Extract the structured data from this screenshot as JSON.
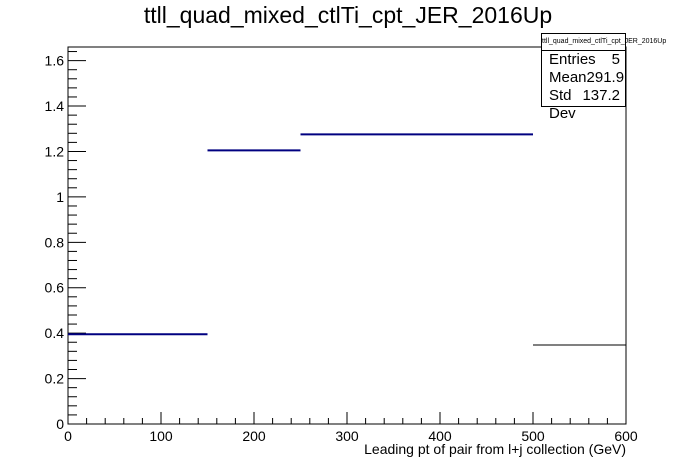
{
  "chart_data": {
    "type": "bar",
    "title": "ttll_quad_mixed_ctlTi_cpt_JER_2016Up",
    "xlabel": "Leading pt of pair from l+j collection (GeV)",
    "ylabel": "",
    "xlim": [
      0,
      600
    ],
    "ylim": [
      0,
      1.66
    ],
    "x_ticks": [
      0,
      100,
      200,
      300,
      400,
      500,
      600
    ],
    "y_ticks": [
      0,
      0.2,
      0.4,
      0.6,
      0.8,
      1,
      1.2,
      1.4,
      1.6
    ],
    "y_tick_labels": [
      "0",
      "0.2",
      "0.4",
      "0.6",
      "0.8",
      "1",
      "1.2",
      "1.4",
      "1.6"
    ],
    "bins": [
      {
        "low": 0,
        "high": 150,
        "value": 0.395
      },
      {
        "low": 150,
        "high": 250,
        "value": 1.205
      },
      {
        "low": 250,
        "high": 500,
        "value": 1.275
      },
      {
        "low": 500,
        "high": 600,
        "value": 0.348
      }
    ],
    "grid": false,
    "line_color": "#000080",
    "overflow_color": "#000000"
  },
  "stats": {
    "title": "ttll_quad_mixed_ctlTi_cpt_JER_2016Up",
    "entries_label": "Entries",
    "entries_value": "5",
    "mean_label": "Mean",
    "mean_value": "291.9",
    "stddev_label": "Std Dev",
    "stddev_value": "137.2"
  }
}
